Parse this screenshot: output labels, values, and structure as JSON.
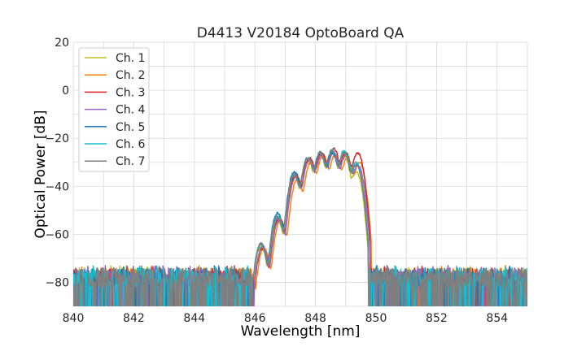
{
  "chart_data": {
    "type": "line",
    "title": "D4413 V20184 OptoBoard QA",
    "xlabel": "Wavelength [nm]",
    "ylabel": "Optical Power [dB]",
    "xlim": [
      840,
      855
    ],
    "ylim": [
      -90,
      20
    ],
    "x_ticks": [
      840,
      842,
      844,
      846,
      848,
      850,
      852,
      854
    ],
    "x_tick_labels": [
      "840",
      "842",
      "844",
      "846",
      "848",
      "850",
      "852",
      "854"
    ],
    "y_ticks": [
      20,
      0,
      -20,
      -40,
      -60,
      -80
    ],
    "y_tick_labels": [
      "20",
      "0",
      "−20",
      "−40",
      "−60",
      "−80"
    ],
    "grid": true,
    "legend_position": "upper-left",
    "noise_floor_db": -80,
    "series": [
      {
        "name": "Ch. 1",
        "color": "#bcbd22",
        "peak_wavelengths": [
          846.2,
          846.75,
          847.3,
          847.75,
          848.15,
          848.55,
          848.95,
          849.35
        ],
        "peak_levels": [
          -65,
          -54,
          -36,
          -29,
          -27,
          -26,
          -27,
          -34
        ]
      },
      {
        "name": "Ch. 2",
        "color": "#ff7f0e",
        "peak_wavelengths": [
          846.3,
          846.85,
          847.4,
          847.85,
          848.25,
          848.65,
          849.05,
          849.45
        ],
        "peak_levels": [
          -66,
          -54,
          -37,
          -30,
          -27,
          -27,
          -28,
          -30
        ]
      },
      {
        "name": "Ch. 3",
        "color": "#d62728",
        "peak_wavelengths": [
          846.25,
          846.8,
          847.35,
          847.8,
          848.2,
          848.6,
          849.0,
          849.4
        ],
        "peak_levels": [
          -66,
          -53,
          -35,
          -28,
          -26,
          -24,
          -26,
          -26
        ]
      },
      {
        "name": "Ch. 4",
        "color": "#9467bd",
        "peak_wavelengths": [
          846.25,
          846.8,
          847.35,
          847.8,
          848.2,
          848.6,
          849.0,
          849.4
        ],
        "peak_levels": [
          -65,
          -54,
          -36,
          -29,
          -27,
          -26,
          -27,
          -31
        ]
      },
      {
        "name": "Ch. 5",
        "color": "#1f77b4",
        "peak_wavelengths": [
          846.2,
          846.75,
          847.3,
          847.75,
          848.15,
          848.55,
          848.95,
          849.35
        ],
        "peak_levels": [
          -64,
          -51,
          -34,
          -28,
          -26,
          -26,
          -26,
          -31
        ]
      },
      {
        "name": "Ch. 6",
        "color": "#17becf",
        "peak_wavelengths": [
          846.2,
          846.75,
          847.3,
          847.75,
          848.15,
          848.55,
          848.95,
          849.35
        ],
        "peak_levels": [
          -64,
          -52,
          -35,
          -28,
          -26,
          -25,
          -25,
          -30
        ]
      },
      {
        "name": "Ch. 7",
        "color": "#7f7f7f",
        "peak_wavelengths": [
          846.2,
          846.75,
          847.3,
          847.75,
          848.15,
          848.55,
          848.95,
          849.35
        ],
        "peak_levels": [
          -64,
          -53,
          -35,
          -28,
          -26,
          -25,
          -26,
          -31
        ]
      }
    ]
  }
}
